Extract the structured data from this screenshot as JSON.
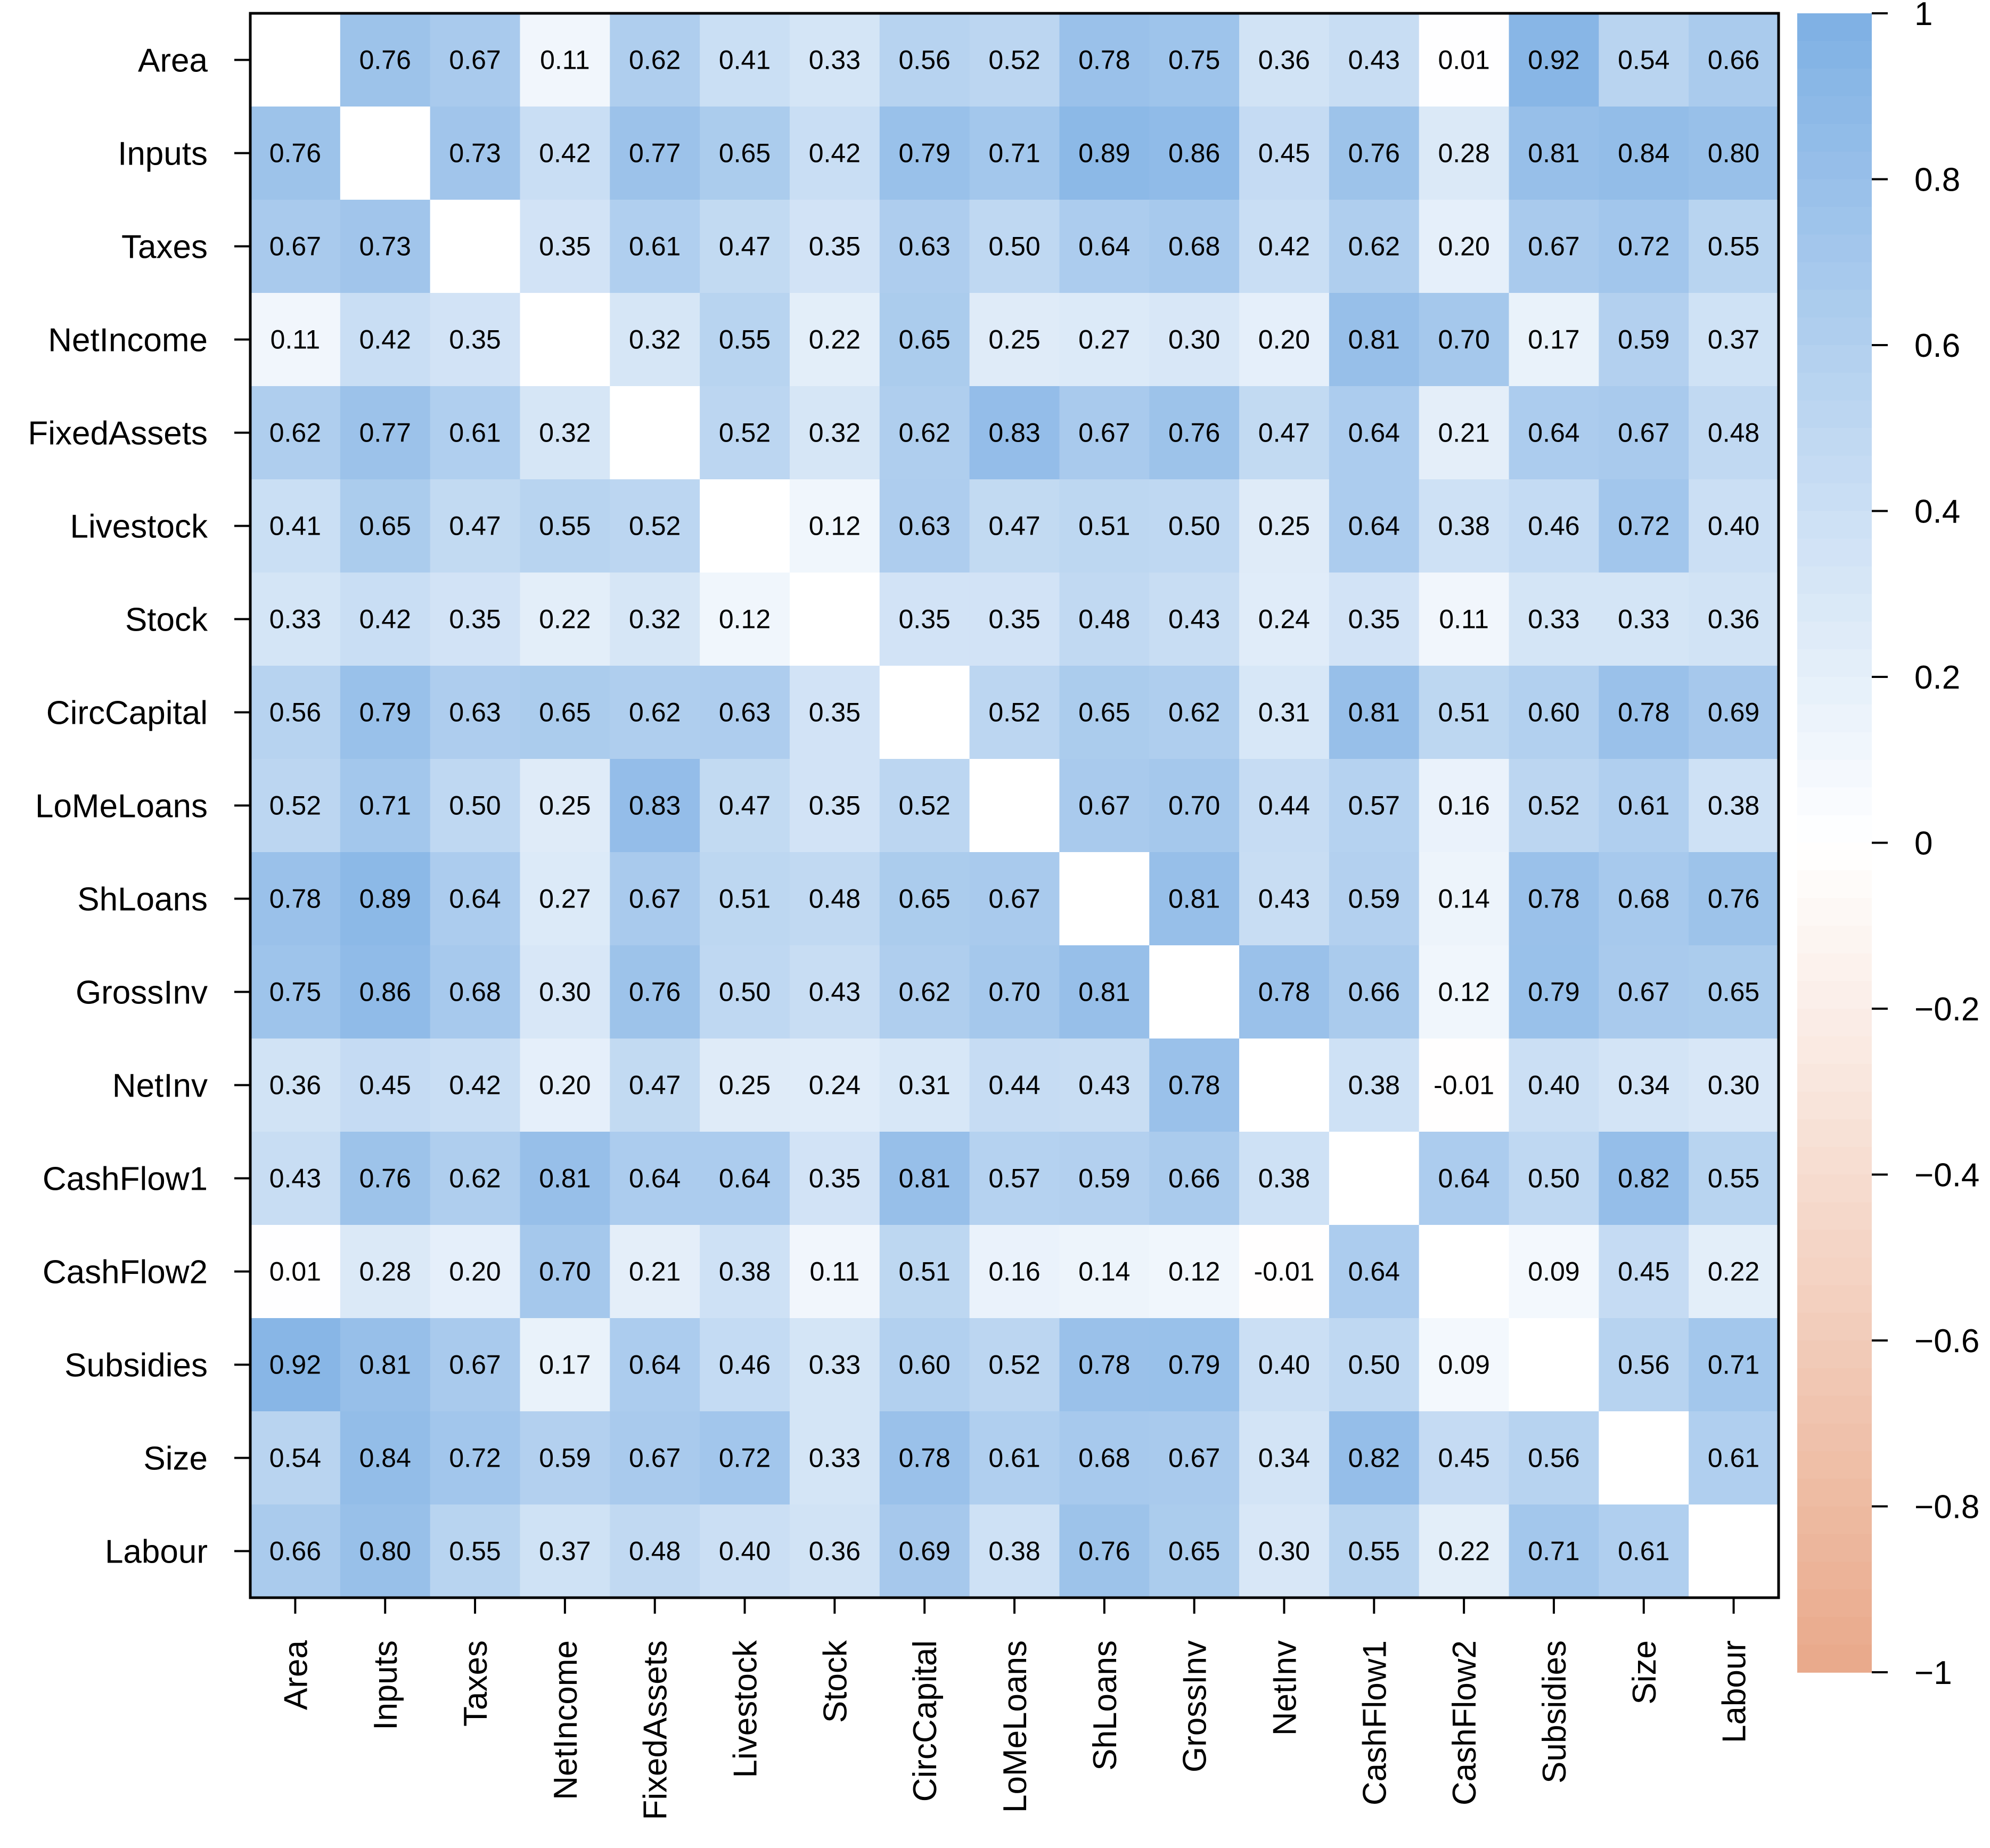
{
  "chart_data": {
    "type": "heatmap",
    "title": "",
    "variables": [
      "Area",
      "Inputs",
      "Taxes",
      "NetIncome",
      "FixedAssets",
      "Livestock",
      "Stock",
      "CircCapital",
      "LoMeLoans",
      "ShLoans",
      "GrossInv",
      "NetInv",
      "CashFlow1",
      "CashFlow2",
      "Subsidies",
      "Size",
      "Labour"
    ],
    "matrix": [
      [
        "",
        "0.76",
        "0.67",
        "0.11",
        "0.62",
        "0.41",
        "0.33",
        "0.56",
        "0.52",
        "0.78",
        "0.75",
        "0.36",
        "0.43",
        "0.01",
        "0.92",
        "0.54",
        "0.66"
      ],
      [
        "0.76",
        "",
        "0.73",
        "0.42",
        "0.77",
        "0.65",
        "0.42",
        "0.79",
        "0.71",
        "0.89",
        "0.86",
        "0.45",
        "0.76",
        "0.28",
        "0.81",
        "0.84",
        "0.80"
      ],
      [
        "0.67",
        "0.73",
        "",
        "0.35",
        "0.61",
        "0.47",
        "0.35",
        "0.63",
        "0.50",
        "0.64",
        "0.68",
        "0.42",
        "0.62",
        "0.20",
        "0.67",
        "0.72",
        "0.55"
      ],
      [
        "0.11",
        "0.42",
        "0.35",
        "",
        "0.32",
        "0.55",
        "0.22",
        "0.65",
        "0.25",
        "0.27",
        "0.30",
        "0.20",
        "0.81",
        "0.70",
        "0.17",
        "0.59",
        "0.37"
      ],
      [
        "0.62",
        "0.77",
        "0.61",
        "0.32",
        "",
        "0.52",
        "0.32",
        "0.62",
        "0.83",
        "0.67",
        "0.76",
        "0.47",
        "0.64",
        "0.21",
        "0.64",
        "0.67",
        "0.48"
      ],
      [
        "0.41",
        "0.65",
        "0.47",
        "0.55",
        "0.52",
        "",
        "0.12",
        "0.63",
        "0.47",
        "0.51",
        "0.50",
        "0.25",
        "0.64",
        "0.38",
        "0.46",
        "0.72",
        "0.40"
      ],
      [
        "0.33",
        "0.42",
        "0.35",
        "0.22",
        "0.32",
        "0.12",
        "",
        "0.35",
        "0.35",
        "0.48",
        "0.43",
        "0.24",
        "0.35",
        "0.11",
        "0.33",
        "0.33",
        "0.36"
      ],
      [
        "0.56",
        "0.79",
        "0.63",
        "0.65",
        "0.62",
        "0.63",
        "0.35",
        "",
        "0.52",
        "0.65",
        "0.62",
        "0.31",
        "0.81",
        "0.51",
        "0.60",
        "0.78",
        "0.69"
      ],
      [
        "0.52",
        "0.71",
        "0.50",
        "0.25",
        "0.83",
        "0.47",
        "0.35",
        "0.52",
        "",
        "0.67",
        "0.70",
        "0.44",
        "0.57",
        "0.16",
        "0.52",
        "0.61",
        "0.38"
      ],
      [
        "0.78",
        "0.89",
        "0.64",
        "0.27",
        "0.67",
        "0.51",
        "0.48",
        "0.65",
        "0.67",
        "",
        "0.81",
        "0.43",
        "0.59",
        "0.14",
        "0.78",
        "0.68",
        "0.76"
      ],
      [
        "0.75",
        "0.86",
        "0.68",
        "0.30",
        "0.76",
        "0.50",
        "0.43",
        "0.62",
        "0.70",
        "0.81",
        "",
        "0.78",
        "0.66",
        "0.12",
        "0.79",
        "0.67",
        "0.65"
      ],
      [
        "0.36",
        "0.45",
        "0.42",
        "0.20",
        "0.47",
        "0.25",
        "0.24",
        "0.31",
        "0.44",
        "0.43",
        "0.78",
        "",
        "0.38",
        "-0.01",
        "0.40",
        "0.34",
        "0.30"
      ],
      [
        "0.43",
        "0.76",
        "0.62",
        "0.81",
        "0.64",
        "0.64",
        "0.35",
        "0.81",
        "0.57",
        "0.59",
        "0.66",
        "0.38",
        "",
        "0.64",
        "0.50",
        "0.82",
        "0.55"
      ],
      [
        "0.01",
        "0.28",
        "0.20",
        "0.70",
        "0.21",
        "0.38",
        "0.11",
        "0.51",
        "0.16",
        "0.14",
        "0.12",
        "-0.01",
        "0.64",
        "",
        "0.09",
        "0.45",
        "0.22"
      ],
      [
        "0.92",
        "0.81",
        "0.67",
        "0.17",
        "0.64",
        "0.46",
        "0.33",
        "0.60",
        "0.52",
        "0.78",
        "0.79",
        "0.40",
        "0.50",
        "0.09",
        "",
        "0.56",
        "0.71"
      ],
      [
        "0.54",
        "0.84",
        "0.72",
        "0.59",
        "0.67",
        "0.72",
        "0.33",
        "0.78",
        "0.61",
        "0.68",
        "0.67",
        "0.34",
        "0.82",
        "0.45",
        "0.56",
        "",
        "0.61"
      ],
      [
        "0.66",
        "0.80",
        "0.55",
        "0.37",
        "0.48",
        "0.40",
        "0.36",
        "0.69",
        "0.38",
        "0.76",
        "0.65",
        "0.30",
        "0.55",
        "0.22",
        "0.71",
        "0.61",
        ""
      ]
    ],
    "colorbar": {
      "range": [
        -1,
        1
      ],
      "ticks": [
        "1",
        "0.8",
        "0.6",
        "0.4",
        "0.2",
        "0",
        "−0.2",
        "−0.4",
        "−0.6",
        "−0.8",
        "−1"
      ],
      "positive_color": "#7eb0e4",
      "negative_color": "#e9a98a",
      "zero_color": "#ffffff"
    }
  }
}
